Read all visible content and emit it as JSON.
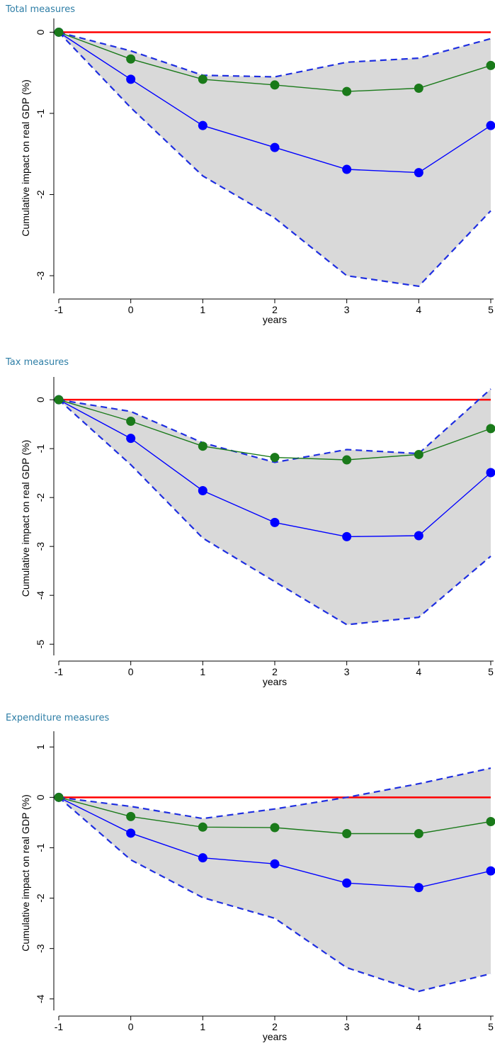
{
  "colors": {
    "band_fill": "#d9d9d9",
    "ci_line": "#1f2fe0",
    "point_estimate": "#0000ff",
    "alt_estimate": "#1a7a1a",
    "zero_line": "#ff0000",
    "title_color": "#2e7ea6"
  },
  "chart_data": [
    {
      "type": "line",
      "title": "Total measures",
      "xlabel": "years",
      "ylabel": "Cumulative impact on real GDP (%)",
      "x": [
        -1,
        0,
        1,
        2,
        3,
        4,
        5
      ],
      "xlim": [
        -1,
        5
      ],
      "ylim": [
        -3.2,
        0.1
      ],
      "yticks": [
        0,
        -1,
        -2,
        -3
      ],
      "band": {
        "upper": [
          0,
          -0.23,
          -0.53,
          -0.55,
          -0.37,
          -0.32,
          -0.08
        ],
        "lower": [
          0,
          -0.93,
          -1.77,
          -2.29,
          -3.0,
          -3.13,
          -2.2
        ]
      },
      "series": [
        {
          "values": [
            0,
            -0.58,
            -1.15,
            -1.42,
            -1.69,
            -1.73,
            -1.15
          ],
          "style": "blue-markers"
        },
        {
          "values": [
            0,
            -0.33,
            -0.58,
            -0.65,
            -0.73,
            -0.69,
            -0.41
          ],
          "style": "green-markers"
        }
      ],
      "reference_line": 0,
      "grid": false
    },
    {
      "type": "line",
      "title": "Tax measures",
      "xlabel": "years",
      "ylabel": "Cumulative impact on real GDP (%)",
      "x": [
        -1,
        0,
        1,
        2,
        3,
        4,
        5
      ],
      "xlim": [
        -1,
        5
      ],
      "ylim": [
        -5.2,
        0.35
      ],
      "yticks": [
        0,
        -1,
        -2,
        -3,
        -4,
        -5
      ],
      "band": {
        "upper": [
          0,
          -0.24,
          -0.88,
          -1.28,
          -1.02,
          -1.1,
          0.22
        ],
        "lower": [
          0,
          -1.33,
          -2.83,
          -3.72,
          -4.6,
          -4.45,
          -3.2
        ]
      },
      "series": [
        {
          "values": [
            0,
            -0.79,
            -1.86,
            -2.51,
            -2.8,
            -2.78,
            -1.49
          ],
          "style": "blue-markers"
        },
        {
          "values": [
            0,
            -0.44,
            -0.95,
            -1.18,
            -1.23,
            -1.12,
            -0.59
          ],
          "style": "green-markers"
        }
      ],
      "reference_line": 0,
      "grid": false
    },
    {
      "type": "line",
      "title": "Expenditure measures",
      "xlabel": "years",
      "ylabel": "Cumulative impact on real GDP (%)",
      "x": [
        -1,
        0,
        1,
        2,
        3,
        4,
        5
      ],
      "xlim": [
        -1,
        5
      ],
      "ylim": [
        -4.2,
        1.2
      ],
      "yticks": [
        1,
        0,
        -1,
        -2,
        -3,
        -4
      ],
      "band": {
        "upper": [
          0,
          -0.18,
          -0.42,
          -0.23,
          0.0,
          0.27,
          0.58
        ],
        "lower": [
          0,
          -1.24,
          -1.99,
          -2.4,
          -3.38,
          -3.85,
          -3.5
        ]
      },
      "series": [
        {
          "values": [
            0,
            -0.71,
            -1.2,
            -1.32,
            -1.7,
            -1.79,
            -1.46
          ],
          "style": "blue-markers"
        },
        {
          "values": [
            0,
            -0.38,
            -0.59,
            -0.6,
            -0.72,
            -0.72,
            -0.48
          ],
          "style": "green-markers"
        }
      ],
      "reference_line": 0,
      "grid": false
    }
  ]
}
